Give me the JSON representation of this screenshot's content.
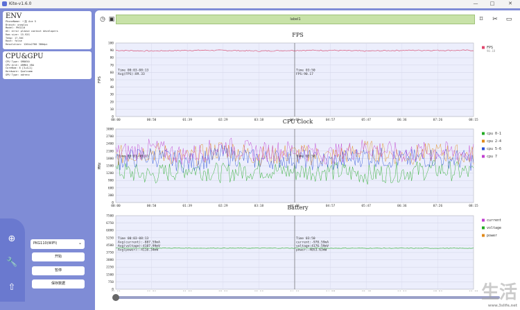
{
  "window": {
    "title": "Kite-v1.6.0",
    "min": "—",
    "max": "□",
    "close": "✕"
  },
  "env": {
    "heading": "ENV",
    "lines": [
      "PhoneName: 一加 Ace 5",
      "Branch: oneplus",
      "Model: PKG110",
      "OS: error please contact developers",
      "Ram size: 15.92G",
      "Temp: 17.50C",
      "Root: false",
      "Resolution: 1264x2780 380dpi"
    ]
  },
  "cpugpu": {
    "heading": "CPU&GPU",
    "lines": [
      "CPU Type: SM8650",
      "CPU Arch: ARM64_V8A",
      "CoreNum: 8 [3+4+1]",
      "Hardware: Qualcomm",
      "GPU Type: adreno"
    ]
  },
  "device": {
    "selected": "PKG110(WIFI)"
  },
  "buttons": {
    "start": "开始",
    "pause": "暂停",
    "save": "保存数据"
  },
  "topbar": {
    "label": "label1"
  },
  "x_ticks": [
    "00:00",
    "00:50",
    "01:39",
    "02:29",
    "03:18",
    "04:08",
    "04:57",
    "05:47",
    "06:36",
    "07:26",
    "08:15"
  ],
  "cursor": {
    "time_left": "Time 00:03-08:13",
    "time_right": "Time 03:50"
  },
  "fps": {
    "title": "FPS",
    "ylabel": "FPS",
    "avg_left": "Avg(FPS):89.33",
    "value_right": "FPS:90.17",
    "legend": [
      {
        "name": "FPS",
        "sub": "90.18",
        "color": "#e0466c"
      }
    ]
  },
  "cpu": {
    "title": "CPU Clock",
    "ylabel": "MHz",
    "legend": [
      {
        "name": "cpu 0-1",
        "color": "#22aa22"
      },
      {
        "name": "cpu 2-4",
        "color": "#e08a1a"
      },
      {
        "name": "cpu 5-6",
        "color": "#2a4fd6"
      },
      {
        "name": "cpu 7",
        "color": "#c03fd0"
      }
    ]
  },
  "battery": {
    "title": "Battery",
    "left_lines": [
      "Avg(current):-887.59mA",
      "Avg(voltage):4187.99mV",
      "Avg(power):-4116.34mW"
    ],
    "right_lines": [
      "current:-970.59mA",
      "voltage:4176.59mV",
      "power:-4053.63mW"
    ],
    "legend": [
      {
        "name": "current",
        "color": "#c03fd0"
      },
      {
        "name": "voltage",
        "color": "#22aa22"
      },
      {
        "name": "power",
        "color": "#e08a1a"
      }
    ]
  },
  "watermark": {
    "big": "生活",
    "small": "www.3slife.net"
  },
  "chart_data": [
    {
      "type": "line",
      "title": "FPS",
      "ylabel": "FPS",
      "ylim": [
        0,
        100
      ],
      "yticks": [
        0,
        10,
        20,
        30,
        40,
        50,
        60,
        70,
        80,
        90,
        100
      ],
      "series": [
        {
          "name": "FPS",
          "values": [
            90,
            89,
            90,
            90,
            89,
            90,
            90,
            89,
            90,
            90,
            90
          ]
        }
      ]
    },
    {
      "type": "line",
      "title": "CPU Clock",
      "ylabel": "MHz",
      "ylim": [
        0,
        3000
      ],
      "yticks": [
        0,
        300,
        600,
        900,
        1200,
        1500,
        1800,
        2100,
        2400,
        2700,
        3000
      ],
      "series": [
        {
          "name": "cpu 0-1",
          "values": [
            1300,
            1100,
            1400,
            1200,
            1350,
            1250,
            1300,
            1150,
            1250,
            1350,
            1200
          ]
        },
        {
          "name": "cpu 2-4",
          "values": [
            1900,
            2100,
            1800,
            2200,
            1900,
            2000,
            1850,
            2150,
            1900,
            2050,
            1900
          ]
        },
        {
          "name": "cpu 5-6",
          "values": [
            1700,
            1900,
            1600,
            1950,
            1750,
            1800,
            1650,
            1900,
            1750,
            1850,
            1700
          ]
        },
        {
          "name": "cpu 7",
          "values": [
            2000,
            2200,
            1900,
            2300,
            2050,
            2150,
            1950,
            2250,
            2000,
            2100,
            2000
          ]
        }
      ]
    },
    {
      "type": "line",
      "title": "Battery",
      "ylim": [
        0,
        7500
      ],
      "yticks": [
        0,
        750,
        1500,
        2250,
        3000,
        3750,
        4500,
        5250,
        6000,
        6750,
        7500
      ],
      "series": [
        {
          "name": "voltage",
          "values": [
            4190,
            4188,
            4186,
            4185,
            4184,
            4183,
            4181,
            4180,
            4179,
            4178,
            4177
          ]
        }
      ]
    }
  ]
}
